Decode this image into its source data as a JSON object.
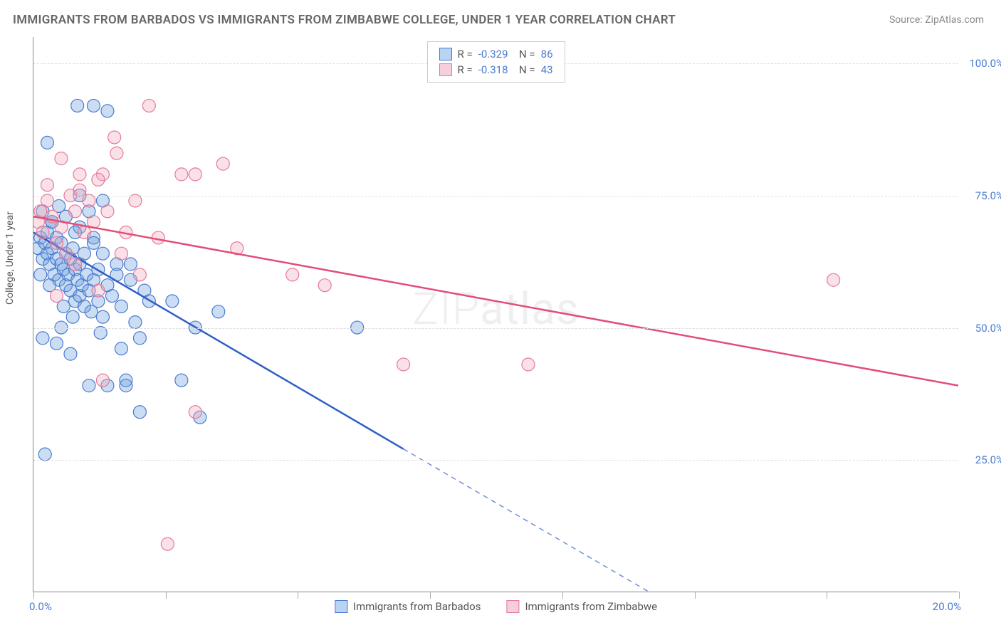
{
  "title": "IMMIGRANTS FROM BARBADOS VS IMMIGRANTS FROM ZIMBABWE COLLEGE, UNDER 1 YEAR CORRELATION CHART",
  "source": "Source: ZipAtlas.com",
  "y_axis_label": "College, Under 1 year",
  "chart": {
    "type": "scatter",
    "xlim": [
      0,
      20
    ],
    "ylim": [
      0,
      105
    ],
    "y_ticks": [
      25,
      50,
      75,
      100
    ],
    "y_tick_labels": [
      "25.0%",
      "50.0%",
      "75.0%",
      "100.0%"
    ],
    "x_tick_positions": [
      0,
      2.86,
      5.71,
      8.57,
      11.43,
      14.29,
      17.14,
      20
    ],
    "x_min_label": "0.0%",
    "x_max_label": "20.0%",
    "background_color": "#ffffff",
    "grid_color": "#dddddd",
    "axis_color": "#888888",
    "marker_radius": 9,
    "marker_fill_opacity": 0.35,
    "series": [
      {
        "name": "Immigrants from Barbados",
        "color": "#6a9edc",
        "stroke": "#4a7bd0",
        "line_color": "#2f5fc7",
        "R": "-0.329",
        "N": "86",
        "regression": {
          "x1": 0,
          "y1": 68,
          "x2": 8.0,
          "y2": 27,
          "dash_x2": 13.3,
          "dash_y2": 0
        },
        "points": [
          [
            0.1,
            65
          ],
          [
            0.15,
            67
          ],
          [
            0.2,
            63
          ],
          [
            0.25,
            66
          ],
          [
            0.3,
            64
          ],
          [
            0.3,
            68
          ],
          [
            0.35,
            62
          ],
          [
            0.4,
            65
          ],
          [
            0.4,
            70
          ],
          [
            0.45,
            60
          ],
          [
            0.5,
            63
          ],
          [
            0.5,
            67
          ],
          [
            0.55,
            59
          ],
          [
            0.6,
            62
          ],
          [
            0.6,
            66
          ],
          [
            0.65,
            61
          ],
          [
            0.7,
            64
          ],
          [
            0.7,
            58
          ],
          [
            0.75,
            60
          ],
          [
            0.8,
            63
          ],
          [
            0.8,
            57
          ],
          [
            0.85,
            65
          ],
          [
            0.9,
            55
          ],
          [
            0.9,
            61
          ],
          [
            0.95,
            59
          ],
          [
            1.0,
            62
          ],
          [
            1.0,
            56
          ],
          [
            1.05,
            58
          ],
          [
            1.1,
            64
          ],
          [
            1.1,
            54
          ],
          [
            1.15,
            60
          ],
          [
            1.2,
            57
          ],
          [
            1.2,
            72
          ],
          [
            1.25,
            53
          ],
          [
            1.3,
            67
          ],
          [
            1.3,
            59
          ],
          [
            1.4,
            55
          ],
          [
            1.4,
            61
          ],
          [
            1.5,
            74
          ],
          [
            1.5,
            52
          ],
          [
            1.6,
            58
          ],
          [
            1.7,
            56
          ],
          [
            1.8,
            60
          ],
          [
            1.9,
            54
          ],
          [
            2.0,
            40
          ],
          [
            2.1,
            62
          ],
          [
            2.2,
            51
          ],
          [
            2.3,
            48
          ],
          [
            2.4,
            57
          ],
          [
            2.5,
            55
          ],
          [
            0.95,
            92
          ],
          [
            1.3,
            92
          ],
          [
            1.6,
            91
          ],
          [
            0.3,
            85
          ],
          [
            1.0,
            75
          ],
          [
            0.5,
            47
          ],
          [
            0.2,
            48
          ],
          [
            0.8,
            45
          ],
          [
            1.2,
            39
          ],
          [
            0.25,
            26
          ],
          [
            1.6,
            39
          ],
          [
            2.0,
            39
          ],
          [
            2.3,
            34
          ],
          [
            3.6,
            33
          ],
          [
            3.0,
            55
          ],
          [
            3.2,
            40
          ],
          [
            3.5,
            50
          ],
          [
            4.0,
            53
          ],
          [
            7.0,
            50
          ],
          [
            0.6,
            50
          ],
          [
            0.4,
            70
          ],
          [
            0.7,
            71
          ],
          [
            1.0,
            69
          ],
          [
            1.3,
            66
          ],
          [
            0.2,
            72
          ],
          [
            0.9,
            68
          ],
          [
            1.5,
            64
          ],
          [
            1.8,
            62
          ],
          [
            2.1,
            59
          ],
          [
            0.55,
            73
          ],
          [
            0.15,
            60
          ],
          [
            0.35,
            58
          ],
          [
            0.85,
            52
          ],
          [
            1.45,
            49
          ],
          [
            0.65,
            54
          ],
          [
            1.9,
            46
          ]
        ]
      },
      {
        "name": "Immigrants from Zimbabwe",
        "color": "#f0a8be",
        "stroke": "#e57a9a",
        "line_color": "#e34d77",
        "R": "-0.318",
        "N": "43",
        "regression": {
          "x1": 0,
          "y1": 71,
          "x2": 20,
          "y2": 39
        },
        "points": [
          [
            0.1,
            70
          ],
          [
            0.15,
            72
          ],
          [
            0.2,
            68
          ],
          [
            0.3,
            74
          ],
          [
            0.4,
            71
          ],
          [
            0.5,
            66
          ],
          [
            0.6,
            69
          ],
          [
            0.7,
            64
          ],
          [
            0.8,
            75
          ],
          [
            0.9,
            72
          ],
          [
            1.0,
            76
          ],
          [
            1.1,
            68
          ],
          [
            1.2,
            74
          ],
          [
            1.3,
            70
          ],
          [
            1.4,
            57
          ],
          [
            1.5,
            79
          ],
          [
            1.6,
            72
          ],
          [
            1.75,
            86
          ],
          [
            1.8,
            83
          ],
          [
            2.0,
            68
          ],
          [
            2.2,
            74
          ],
          [
            2.3,
            60
          ],
          [
            2.5,
            92
          ],
          [
            2.7,
            67
          ],
          [
            3.2,
            79
          ],
          [
            3.5,
            79
          ],
          [
            4.1,
            81
          ],
          [
            4.4,
            65
          ],
          [
            5.6,
            60
          ],
          [
            6.3,
            58
          ],
          [
            8.0,
            43
          ],
          [
            10.7,
            43
          ],
          [
            17.3,
            59
          ],
          [
            1.0,
            79
          ],
          [
            0.3,
            77
          ],
          [
            0.6,
            82
          ],
          [
            0.5,
            56
          ],
          [
            1.5,
            40
          ],
          [
            3.5,
            34
          ],
          [
            1.9,
            64
          ],
          [
            0.9,
            62
          ],
          [
            2.9,
            9
          ],
          [
            1.4,
            78
          ]
        ]
      }
    ]
  },
  "watermark": "ZIPatlas",
  "legend_bottom": [
    {
      "label": "Immigrants from Barbados",
      "fill": "#b9d4f2",
      "stroke": "#4a7bd0"
    },
    {
      "label": "Immigrants from Zimbabwe",
      "fill": "#f7cfdb",
      "stroke": "#e57a9a"
    }
  ],
  "legend_top_fills": [
    {
      "fill": "#b9d4f2",
      "stroke": "#4a7bd0"
    },
    {
      "fill": "#f7cfdb",
      "stroke": "#e57a9a"
    }
  ]
}
